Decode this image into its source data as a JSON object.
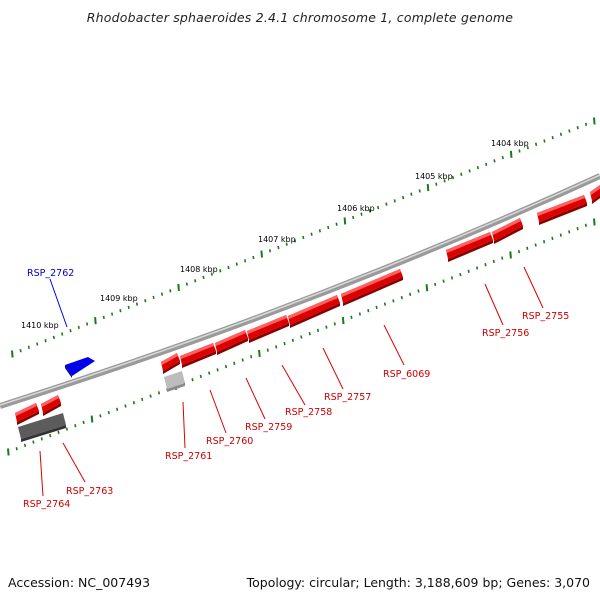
{
  "title": "Rhodobacter sphaeroides 2.4.1 chromosome 1, complete genome",
  "footer": {
    "accession": "Accession: NC_007493",
    "summary": "Topology: circular; Length: 3,188,609 bp; Genes: 3,070"
  },
  "ruler": {
    "labels": [
      "1404 kbp",
      "1405 kbp",
      "1406 kbp",
      "1407 kbp",
      "1408 kbp",
      "1409 kbp",
      "1410 kbp"
    ]
  },
  "genes": [
    {
      "id": "RSP_2762",
      "strand": "forward",
      "color": "#0000ee"
    },
    {
      "id": "RSP_2755",
      "strand": "reverse",
      "color": "#dd0000"
    },
    {
      "id": "RSP_2756",
      "strand": "reverse",
      "color": "#dd0000"
    },
    {
      "id": "RSP_6069",
      "strand": "reverse",
      "color": "#dd0000"
    },
    {
      "id": "RSP_2757",
      "strand": "reverse",
      "color": "#dd0000"
    },
    {
      "id": "RSP_2758",
      "strand": "reverse",
      "color": "#dd0000"
    },
    {
      "id": "RSP_2759",
      "strand": "reverse",
      "color": "#dd0000"
    },
    {
      "id": "RSP_2760",
      "strand": "reverse",
      "color": "#dd0000"
    },
    {
      "id": "RSP_2761",
      "strand": "reverse",
      "color": "#dd0000"
    },
    {
      "id": "RSP_2763",
      "strand": "reverse",
      "color": "#dd0000"
    },
    {
      "id": "RSP_2764",
      "strand": "reverse",
      "color": "#dd0000"
    }
  ],
  "colors": {
    "backbone": "#808080",
    "tick": "#1a7a1a",
    "forward_gene": "#0000ee",
    "reverse_gene": "#dd0000",
    "pseudo_gene": "#555555"
  }
}
